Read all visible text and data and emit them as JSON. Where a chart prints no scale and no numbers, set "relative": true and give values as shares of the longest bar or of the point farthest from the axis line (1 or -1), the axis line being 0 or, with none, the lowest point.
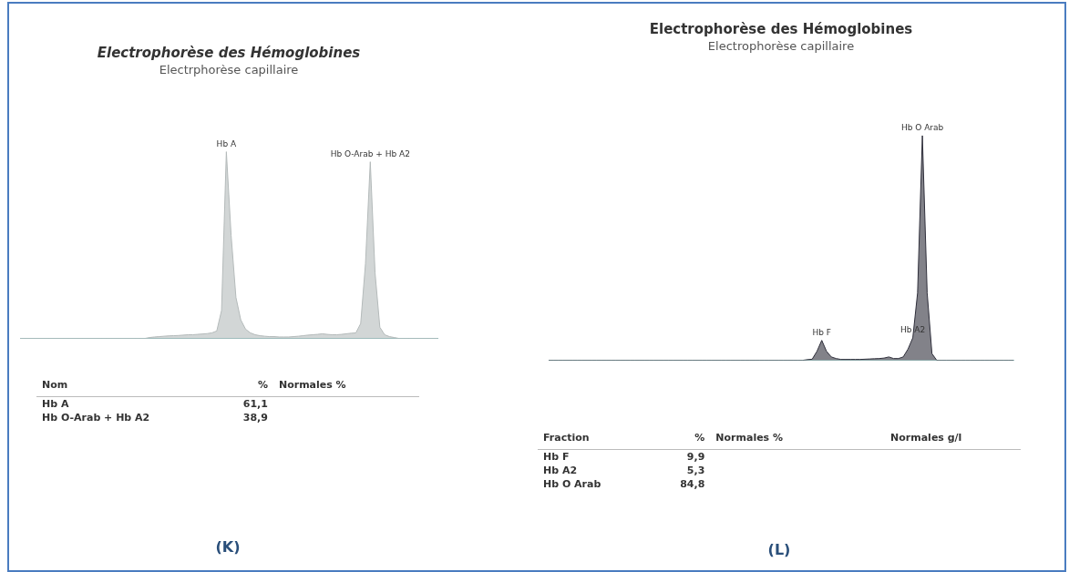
{
  "chart_data": [
    {
      "type": "area",
      "title": "Electrophorèse des Hémoglobines",
      "subtitle": "Electrphorèse capillaire",
      "relative": true,
      "color": "#b4baba",
      "categories": [
        null,
        null,
        null,
        null,
        null,
        null,
        null,
        null,
        null,
        null,
        null,
        null,
        null,
        null,
        null,
        null,
        null,
        null,
        null,
        null,
        null,
        null,
        null,
        null,
        null,
        null,
        null,
        null,
        null,
        null,
        null,
        null,
        null,
        null,
        null,
        null,
        null,
        null,
        null,
        null,
        null,
        null,
        null,
        null,
        null,
        null,
        null,
        null,
        null,
        null,
        null,
        null,
        null,
        null,
        null,
        null,
        null,
        null,
        null,
        null,
        null,
        null,
        null,
        null,
        null,
        null,
        null,
        null,
        null,
        null,
        null,
        null,
        null,
        null,
        null,
        null,
        null,
        null,
        null,
        null,
        null,
        null,
        null,
        null,
        null,
        null,
        null,
        null
      ],
      "values": [
        0,
        0,
        0,
        0,
        0,
        0,
        0,
        0,
        0,
        0,
        0,
        0,
        0,
        0,
        0,
        0,
        0,
        0,
        0,
        0,
        0,
        0,
        0,
        0,
        0,
        0,
        0,
        0.005,
        0.008,
        0.01,
        0.012,
        0.014,
        0.015,
        0.016,
        0.018,
        0.02,
        0.02,
        0.022,
        0.024,
        0.026,
        0.03,
        0.04,
        0.15,
        1,
        0.55,
        0.22,
        0.1,
        0.05,
        0.03,
        0.02,
        0.015,
        0.012,
        0.01,
        0.01,
        0.008,
        0.008,
        0.008,
        0.01,
        0.012,
        0.015,
        0.018,
        0.02,
        0.022,
        0.025,
        0.022,
        0.02,
        0.02,
        0.022,
        0.025,
        0.028,
        0.03,
        0.08,
        0.4,
        0.946,
        0.35,
        0.06,
        0.02,
        0.01,
        0.005,
        0,
        0,
        0,
        0,
        0,
        0,
        0,
        0,
        0
      ],
      "annotations": [
        {
          "text": "Hb A",
          "y": 1
        },
        {
          "text": "Hb O-Arab + Hb A2",
          "y": 0.946
        }
      ]
    },
    {
      "type": "other",
      "title": "(K)",
      "categories": [
        "Hb A",
        "Hb O-Arab + Hb A2"
      ],
      "values": [
        61.1,
        38.9
      ],
      "value_labels": [
        "61,1",
        "38,9"
      ],
      "annotations": [
        "Nom",
        "%",
        "Normales %"
      ]
    },
    {
      "type": "area",
      "title": "Electrophorèse des Hémoglobines",
      "subtitle": "Electrophorèse capillaire",
      "relative": true,
      "color": "#2e2e3a",
      "categories": [
        null,
        null,
        null,
        null,
        null,
        null,
        null,
        null,
        null,
        null,
        null,
        null,
        null,
        null,
        null,
        null,
        null,
        null,
        null,
        null,
        null,
        null,
        null,
        null,
        null,
        null,
        null,
        null,
        null,
        null,
        null,
        null,
        null,
        null,
        null,
        null,
        null,
        null,
        null,
        null,
        null,
        null,
        null,
        null,
        null,
        null,
        null,
        null,
        null,
        null,
        null,
        null,
        null,
        null,
        null,
        null,
        null,
        null,
        null,
        null,
        null,
        null,
        null,
        null,
        null,
        null,
        null,
        null,
        null,
        null,
        null,
        null,
        null,
        null,
        null,
        null,
        null,
        null,
        null,
        null,
        null,
        null,
        null,
        null,
        null,
        null,
        null,
        null,
        null,
        null,
        null,
        null,
        null,
        null,
        null,
        null,
        null,
        null
      ],
      "values": [
        0,
        0,
        0,
        0,
        0,
        0,
        0,
        0,
        0,
        0,
        0,
        0,
        0,
        0,
        0,
        0,
        0,
        0,
        0,
        0,
        0,
        0,
        0,
        0,
        0,
        0,
        0,
        0,
        0,
        0,
        0,
        0,
        0,
        0,
        0,
        0,
        0,
        0,
        0,
        0,
        0,
        0,
        0,
        0,
        0,
        0,
        0,
        0,
        0,
        0,
        0,
        0,
        0,
        0,
        0.003,
        0.005,
        0.04,
        0.089,
        0.04,
        0.015,
        0.008,
        0.004,
        0.004,
        0.004,
        0.004,
        0.004,
        0.005,
        0.006,
        0.007,
        0.008,
        0.01,
        0.015,
        0.008,
        0.008,
        0.015,
        0.05,
        0.1,
        0.3,
        1,
        0.3,
        0.03,
        0,
        0,
        0,
        0,
        0,
        0,
        0,
        0,
        0,
        0,
        0,
        0,
        0,
        0,
        0,
        0,
        0
      ],
      "annotations": [
        {
          "text": "Hb F",
          "y": 0.089
        },
        {
          "text": "Hb A2",
          "y": 0.1
        },
        {
          "text": "Hb O Arab",
          "y": 1
        }
      ]
    },
    {
      "type": "other",
      "title": "(L)",
      "categories": [
        "Hb F",
        "Hb A2",
        "Hb O Arab"
      ],
      "values": [
        9.9,
        5.3,
        84.8
      ],
      "value_labels": [
        "9,9",
        "5,3",
        "84,8"
      ],
      "annotations": [
        "Fraction",
        "%",
        "Normales %",
        "Normales g/l"
      ]
    }
  ]
}
